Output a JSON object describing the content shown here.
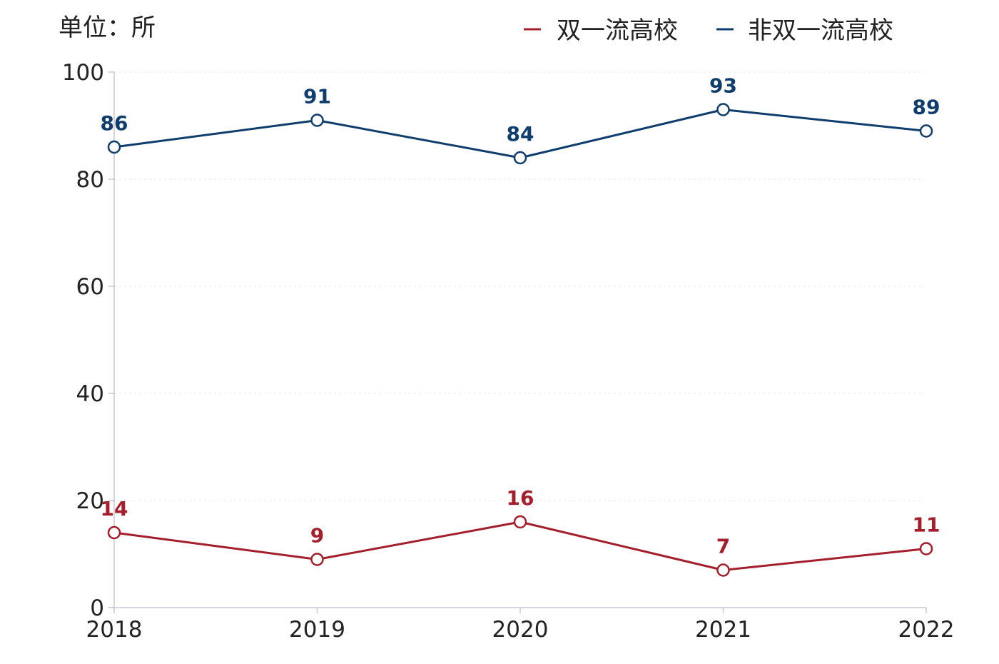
{
  "chart_data": {
    "type": "line",
    "unit_label": "单位：所",
    "categories": [
      "2018",
      "2019",
      "2020",
      "2021",
      "2022"
    ],
    "ylim": [
      0,
      100
    ],
    "yticks": [
      0,
      20,
      40,
      60,
      80,
      100
    ],
    "grid": true,
    "legend_placement": "top-right",
    "series": [
      {
        "name": "双一流高校",
        "color": "#a31f2b",
        "values": [
          14,
          9,
          16,
          7,
          11
        ]
      },
      {
        "name": "非双一流高校",
        "color": "#0f3d6e",
        "values": [
          86,
          91,
          84,
          93,
          89
        ]
      }
    ]
  }
}
